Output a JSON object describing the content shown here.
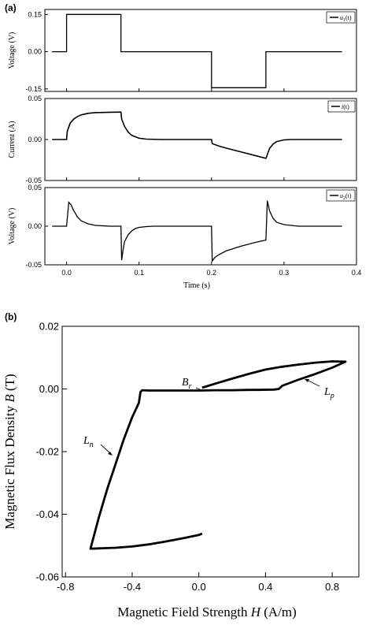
{
  "figure": {
    "label_a": "(a)",
    "label_b": "(b)"
  },
  "chart_data": [
    {
      "type": "line",
      "panel": "a-top",
      "ylabel": "Voltage (V)",
      "ylim": [
        -0.16,
        0.17
      ],
      "yticks": [
        "0.15",
        "0.00",
        "-0.15"
      ],
      "yticks_val": [
        0.15,
        0.0,
        -0.15
      ],
      "xlim": [
        -0.03,
        0.4
      ],
      "legend": {
        "label": "u_1(t)",
        "base": "u",
        "sub": "1",
        "arg": "(t)",
        "placement": "top-right"
      },
      "series": [
        {
          "x": [
            -0.02,
            0.0,
            0.0,
            0.075,
            0.075,
            0.2,
            0.2,
            0.275,
            0.275,
            0.38
          ],
          "y": [
            0.0,
            0.0,
            0.15,
            0.15,
            0.0,
            0.0,
            -0.145,
            -0.145,
            0.0,
            0.0
          ]
        }
      ]
    },
    {
      "type": "line",
      "panel": "a-middle",
      "ylabel": "Current (A)",
      "ylim": [
        -0.05,
        0.05
      ],
      "yticks": [
        "0.05",
        "0.00",
        "-0.05"
      ],
      "yticks_val": [
        0.05,
        0.0,
        -0.05
      ],
      "xlim": [
        -0.03,
        0.4
      ],
      "legend": {
        "label": "i(t)",
        "base": "i",
        "sub": "",
        "arg": "(t)",
        "placement": "top-right"
      },
      "series": [
        {
          "x": [
            -0.02,
            0.0,
            0.001,
            0.005,
            0.01,
            0.015,
            0.02,
            0.03,
            0.04,
            0.05,
            0.06,
            0.075,
            0.076,
            0.08,
            0.085,
            0.09,
            0.1,
            0.11,
            0.13,
            0.16,
            0.2,
            0.201,
            0.21,
            0.22,
            0.24,
            0.26,
            0.275,
            0.276,
            0.28,
            0.285,
            0.29,
            0.3,
            0.31,
            0.33,
            0.36,
            0.38
          ],
          "y": [
            0.0,
            0.0,
            0.01,
            0.02,
            0.025,
            0.028,
            0.03,
            0.032,
            0.0328,
            0.033,
            0.0333,
            0.0335,
            0.025,
            0.016,
            0.009,
            0.005,
            0.0015,
            0.0005,
            0.0,
            0.0,
            0.0,
            -0.005,
            -0.008,
            -0.0105,
            -0.015,
            -0.0195,
            -0.023,
            -0.021,
            -0.011,
            -0.0055,
            -0.0025,
            -0.0005,
            0.0,
            0.0,
            0.0,
            0.0
          ]
        }
      ]
    },
    {
      "type": "line",
      "panel": "a-bottom",
      "ylabel": "Voltage (V)",
      "ylim": [
        -0.05,
        0.05
      ],
      "yticks": [
        "0.05",
        "0.00",
        "-0.05"
      ],
      "yticks_val": [
        0.05,
        0.0,
        -0.05
      ],
      "xlim": [
        -0.03,
        0.4
      ],
      "xticks": [
        "0.0",
        "0.1",
        "0.2",
        "0.3",
        "0.4"
      ],
      "xticks_val": [
        0.0,
        0.1,
        0.2,
        0.3,
        0.4
      ],
      "xlabel": "Time (s)",
      "legend": {
        "label": "u_2(t)",
        "base": "u",
        "sub": "2",
        "arg": "(t)",
        "placement": "top-right"
      },
      "series": [
        {
          "x": [
            -0.02,
            0.0,
            0.003,
            0.006,
            0.01,
            0.015,
            0.02,
            0.03,
            0.04,
            0.06,
            0.075,
            0.076,
            0.078,
            0.08,
            0.085,
            0.09,
            0.095,
            0.1,
            0.11,
            0.12,
            0.14,
            0.2,
            0.201,
            0.205,
            0.21,
            0.22,
            0.24,
            0.26,
            0.275,
            0.277,
            0.28,
            0.285,
            0.29,
            0.3,
            0.32,
            0.38
          ],
          "y": [
            0.0,
            0.0,
            0.031,
            0.028,
            0.02,
            0.012,
            0.007,
            0.003,
            0.001,
            0.0,
            0.0,
            -0.044,
            -0.03,
            -0.02,
            -0.011,
            -0.006,
            -0.003,
            -0.0015,
            -0.0005,
            0.0,
            0.0,
            0.0,
            -0.045,
            -0.04,
            -0.037,
            -0.032,
            -0.026,
            -0.021,
            -0.018,
            0.033,
            0.02,
            0.01,
            0.005,
            0.002,
            0.0,
            0.0
          ]
        }
      ]
    },
    {
      "type": "line",
      "panel": "b",
      "xlabel": "Magnetic Field Strength H (A/m)",
      "xlabel_pre": "Magnetic Field Strength ",
      "xlabel_var": "H",
      "xlabel_unit": " (A/m)",
      "ylabel": "Magnetic Flux Density B (T)",
      "ylabel_pre": "Magnetic Flux Density ",
      "ylabel_var": "B",
      "ylabel_unit": " (T)",
      "xlim": [
        -0.82,
        0.96
      ],
      "ylim": [
        -0.06,
        0.02
      ],
      "xticks": [
        "-0.8",
        "-0.4",
        "0.0",
        "0.4",
        "0.8"
      ],
      "xticks_val": [
        -0.8,
        -0.4,
        0.0,
        0.4,
        0.8
      ],
      "yticks": [
        "0.02",
        "0.00",
        "-0.02",
        "-0.04",
        "-0.06"
      ],
      "yticks_val": [
        0.02,
        0.0,
        -0.02,
        -0.04,
        -0.06
      ],
      "series": [
        {
          "x": [
            0.02,
            0.0,
            -0.1,
            -0.2,
            -0.3,
            -0.4,
            -0.5,
            -0.6,
            -0.65,
            -0.64,
            -0.6,
            -0.55,
            -0.5,
            -0.45,
            -0.4,
            -0.36,
            -0.35,
            -0.34,
            -0.3,
            -0.2,
            -0.1,
            0.0,
            0.1,
            0.2,
            0.3,
            0.35,
            0.45,
            0.48,
            0.5,
            0.55,
            0.6,
            0.7,
            0.8,
            0.88,
            0.8,
            0.7,
            0.6,
            0.5,
            0.4,
            0.3,
            0.2,
            0.1,
            0.02
          ],
          "y": [
            -0.0462,
            -0.0466,
            -0.0477,
            -0.0487,
            -0.0496,
            -0.0503,
            -0.0507,
            -0.0509,
            -0.051,
            -0.049,
            -0.041,
            -0.032,
            -0.024,
            -0.016,
            -0.009,
            -0.0045,
            -0.001,
            -0.0004,
            -0.0005,
            -0.0005,
            -0.0005,
            -0.0005,
            -0.0004,
            -0.0004,
            -0.0003,
            -0.0003,
            -0.0002,
            0.0,
            0.001,
            0.002,
            0.003,
            0.0048,
            0.0068,
            0.0087,
            0.0088,
            0.0084,
            0.0078,
            0.0071,
            0.0062,
            0.0048,
            0.0033,
            0.0017,
            0.0004
          ]
        }
      ],
      "annotations": [
        {
          "base": "L",
          "sub": "n",
          "label": "L_n"
        },
        {
          "base": "B",
          "sub": "r",
          "label": "B_r"
        },
        {
          "base": "L",
          "sub": "p",
          "label": "L_p"
        }
      ]
    }
  ]
}
